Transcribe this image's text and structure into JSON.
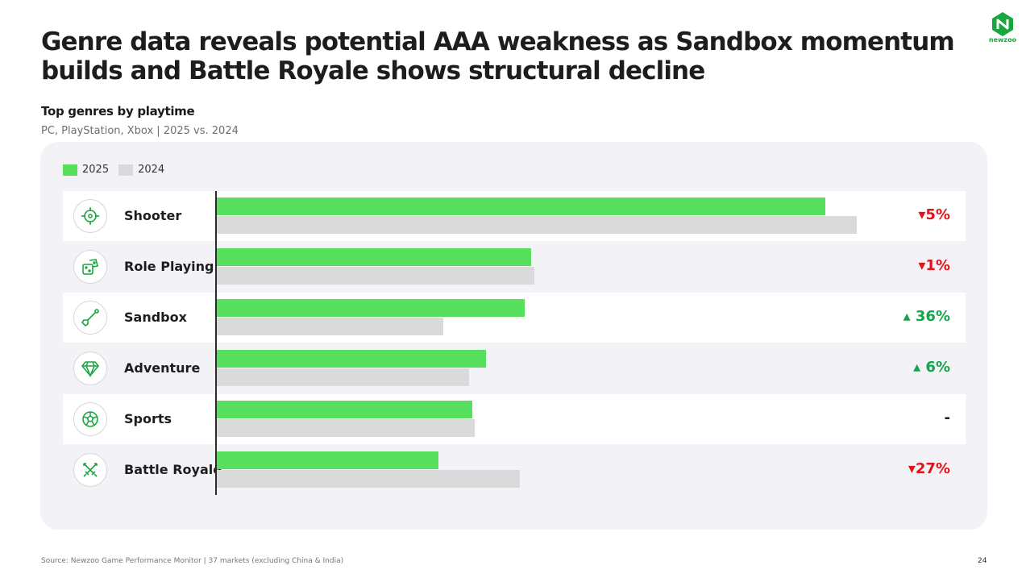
{
  "title": "Genre data reveals potential AAA weakness as Sandbox momentum builds and Battle Royale shows structural decline",
  "brand": {
    "name": "newzoo",
    "color": "#1aa63e"
  },
  "colors": {
    "series_2025": "#57e05e",
    "series_2024": "#dadada",
    "down": "#e0131a",
    "up": "#16a34a",
    "flat": "#1d1d1d"
  },
  "footer": {
    "source": "Source: Newzoo Game Performance Monitor | 37 markets (excluding China & India)",
    "page": "24"
  },
  "chart_data": {
    "type": "bar",
    "orientation": "horizontal",
    "title": "Top genres by playtime",
    "subtitle": "PC, PlayStation, Xbox | 2025 vs. 2024",
    "legend_position": "top-left",
    "categories": [
      "Shooter",
      "Role Playing",
      "Sandbox",
      "Adventure",
      "Sports",
      "Battle Royale"
    ],
    "icons": [
      "crosshair-icon",
      "dice-icon",
      "shovel-icon",
      "diamond-icon",
      "ball-icon",
      "crossed-swords-icon"
    ],
    "series": [
      {
        "name": "2025",
        "values": [
          100,
          51.7,
          50.7,
          44.3,
          42.1,
          36.5
        ]
      },
      {
        "name": "2024",
        "values": [
          105.2,
          52.2,
          37.3,
          41.6,
          42.4,
          49.9
        ]
      }
    ],
    "changes": [
      {
        "text": "▾5%",
        "direction": "down"
      },
      {
        "text": "▾1%",
        "direction": "down"
      },
      {
        "text": "▴ 36%",
        "direction": "up"
      },
      {
        "text": "▴ 6%",
        "direction": "up"
      },
      {
        "text": "-",
        "direction": "flat"
      },
      {
        "text": "▾27%",
        "direction": "down"
      }
    ],
    "grid": false
  }
}
